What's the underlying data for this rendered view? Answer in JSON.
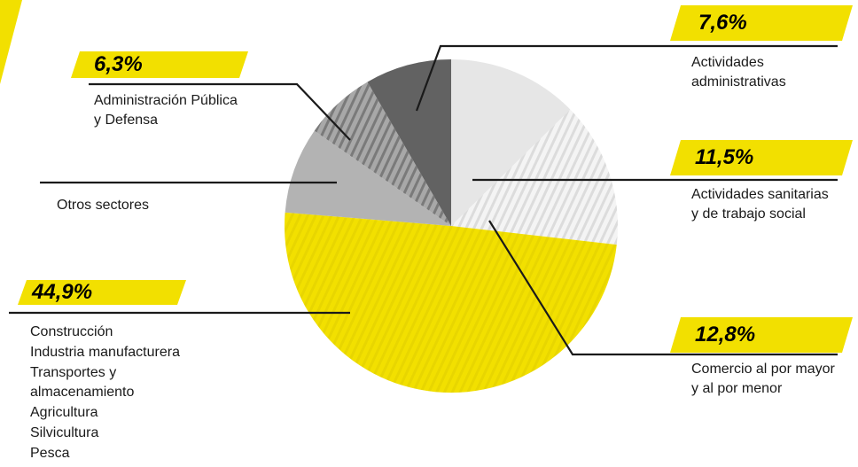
{
  "chart_data": {
    "type": "pie",
    "title": "",
    "slices": [
      {
        "label": "Actividades sanitarias y de trabajo social",
        "value": 11.5,
        "fill": "light-gray"
      },
      {
        "label": "Comercio al por mayor y al por menor",
        "value": 12.8,
        "fill": "hatched-light"
      },
      {
        "label": "Construcción / Industria manufacturera / Transportes y almacenamiento / Agricultura / Silvicultura / Pesca",
        "value": 44.9,
        "fill": "yellow-hatched"
      },
      {
        "label": "Otros sectores",
        "value": 7.6,
        "fill": "mid-gray"
      },
      {
        "label": "Administración Pública y Defensa",
        "value": 6.3,
        "fill": "hatched-gray"
      },
      {
        "label": "Actividades administrativas",
        "value": 7.6,
        "fill": "dark-gray"
      }
    ]
  },
  "callouts": {
    "administrativas": {
      "pct": "7,6%",
      "lines": [
        "Actividades",
        "administrativas"
      ]
    },
    "sanitarias": {
      "pct": "11,5%",
      "lines": [
        "Actividades sanitarias",
        "y de trabajo social"
      ]
    },
    "comercio": {
      "pct": "12,8%",
      "lines": [
        "Comercio al por mayor",
        "y al por menor"
      ]
    },
    "publica": {
      "pct": "6,3%",
      "lines": [
        "Administración Pública",
        "y Defensa"
      ]
    },
    "otros": {
      "lines": [
        "Otros sectores"
      ]
    },
    "construccion": {
      "pct": "44,9%",
      "lines": [
        "Construcción",
        "Industria manufacturera",
        "Transportes y",
        "almacenamiento",
        "Agricultura",
        "Silvicultura",
        "Pesca"
      ]
    }
  },
  "colors": {
    "accent_yellow": "#f2e000",
    "light_gray": "#e6e6e6",
    "mid_gray": "#b3b3b3",
    "dark_gray": "#626262",
    "hatch_gray": "#8a8a8a",
    "line": "#1a1a1a"
  }
}
